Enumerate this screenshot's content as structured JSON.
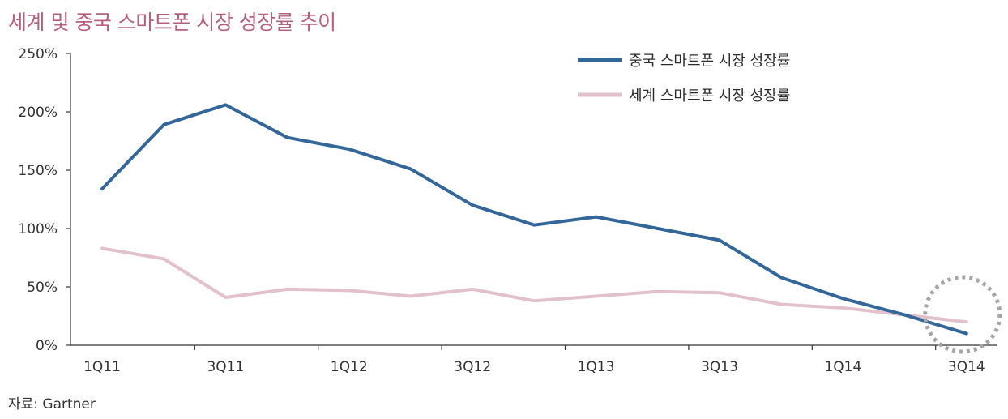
{
  "title": "세계 및 중국 스마트폰 시장 성장률 추이",
  "source": "자료: Gartner",
  "chart_data": {
    "type": "line",
    "title": "세계 및 중국 스마트폰 시장 성장률 추이",
    "xlabel": "",
    "ylabel": "",
    "categories": [
      "1Q11",
      "2Q11",
      "3Q11",
      "4Q11",
      "1Q12",
      "2Q12",
      "3Q12",
      "4Q12",
      "1Q13",
      "2Q13",
      "3Q13",
      "4Q13",
      "1Q14",
      "2Q14",
      "3Q14"
    ],
    "x_tick_labels": [
      "1Q11",
      "3Q11",
      "1Q12",
      "3Q12",
      "1Q13",
      "3Q13",
      "1Q14",
      "3Q14"
    ],
    "y_ticks": [
      0,
      50,
      100,
      150,
      200,
      250
    ],
    "y_tick_labels": [
      "0%",
      "50%",
      "100%",
      "150%",
      "200%",
      "250%"
    ],
    "ylim": [
      0,
      250
    ],
    "unit": "%",
    "grid": false,
    "legend_position": "top-right",
    "series": [
      {
        "name": "중국 스마트폰 시장 성장률",
        "color": "#336699",
        "values": [
          134,
          189,
          206,
          178,
          168,
          151,
          120,
          103,
          110,
          100,
          90,
          58,
          40,
          26,
          10
        ]
      },
      {
        "name": "세계 스마트폰 시장 성장률",
        "color": "#e2c0cc",
        "values": [
          83,
          74,
          41,
          48,
          47,
          42,
          48,
          38,
          42,
          46,
          45,
          35,
          32,
          26,
          20
        ]
      }
    ],
    "annotations": [
      {
        "type": "dotted-circle",
        "category": "3Q14",
        "color": "#a6a6a6"
      }
    ]
  }
}
